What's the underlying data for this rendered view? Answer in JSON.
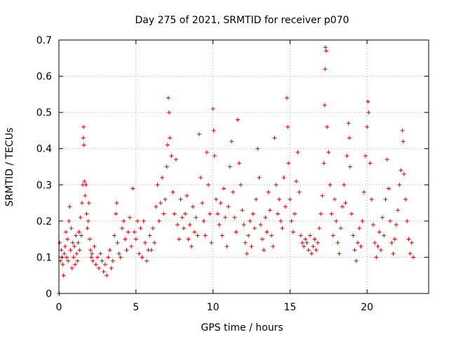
{
  "chart_data": {
    "type": "scatter",
    "title": "Day 275 of 2021, SRMTID for receiver p070",
    "xlabel": "GPS time / hours",
    "ylabel": "SRMTID / TECUs",
    "xlim": [
      0,
      24
    ],
    "ylim": [
      0,
      0.7
    ],
    "xticks": [
      0,
      5,
      10,
      15,
      20
    ],
    "yticks": [
      0,
      0.1,
      0.2,
      0.3,
      0.4,
      0.5,
      0.6,
      0.7
    ],
    "grid": true,
    "marker": "+",
    "color": "#e00000",
    "series": [
      {
        "name": "SRMTID",
        "points": [
          [
            0.0,
            0.0
          ],
          [
            0.02,
            0.0
          ],
          [
            0.05,
            0.14
          ],
          [
            0.1,
            0.09
          ],
          [
            0.15,
            0.12
          ],
          [
            0.2,
            0.1
          ],
          [
            0.25,
            0.08
          ],
          [
            0.3,
            0.05
          ],
          [
            0.35,
            0.11
          ],
          [
            0.4,
            0.13
          ],
          [
            0.45,
            0.17
          ],
          [
            0.5,
            0.1
          ],
          [
            0.55,
            0.15
          ],
          [
            0.6,
            0.09
          ],
          [
            0.65,
            0.2
          ],
          [
            0.7,
            0.24
          ],
          [
            0.75,
            0.12
          ],
          [
            0.8,
            0.18
          ],
          [
            0.85,
            0.07
          ],
          [
            0.9,
            0.14
          ],
          [
            0.95,
            0.1
          ],
          [
            1.0,
            0.13
          ],
          [
            1.05,
            0.08
          ],
          [
            1.1,
            0.16
          ],
          [
            1.15,
            0.11
          ],
          [
            1.2,
            0.09
          ],
          [
            1.25,
            0.14
          ],
          [
            1.3,
            0.17
          ],
          [
            1.35,
            0.12
          ],
          [
            1.4,
            0.21
          ],
          [
            1.45,
            0.16
          ],
          [
            1.5,
            0.25
          ],
          [
            1.55,
            0.3
          ],
          [
            1.58,
            0.43
          ],
          [
            1.6,
            0.46
          ],
          [
            1.62,
            0.41
          ],
          [
            1.65,
            0.31
          ],
          [
            1.7,
            0.27
          ],
          [
            1.75,
            0.3
          ],
          [
            1.8,
            0.22
          ],
          [
            1.85,
            0.18
          ],
          [
            1.9,
            0.2
          ],
          [
            1.95,
            0.25
          ],
          [
            2.0,
            0.15
          ],
          [
            2.05,
            0.12
          ],
          [
            2.1,
            0.1
          ],
          [
            2.15,
            0.11
          ],
          [
            2.2,
            0.09
          ],
          [
            2.3,
            0.13
          ],
          [
            2.4,
            0.08
          ],
          [
            2.5,
            0.1
          ],
          [
            2.6,
            0.07
          ],
          [
            2.7,
            0.11
          ],
          [
            2.8,
            0.09
          ],
          [
            2.9,
            0.06
          ],
          [
            3.0,
            0.08
          ],
          [
            3.1,
            0.05
          ],
          [
            3.2,
            0.1
          ],
          [
            3.3,
            0.12
          ],
          [
            3.4,
            0.07
          ],
          [
            3.5,
            0.09
          ],
          [
            3.6,
            0.16
          ],
          [
            3.7,
            0.22
          ],
          [
            3.75,
            0.25
          ],
          [
            3.8,
            0.14
          ],
          [
            3.9,
            0.11
          ],
          [
            4.0,
            0.1
          ],
          [
            4.1,
            0.18
          ],
          [
            4.2,
            0.2
          ],
          [
            4.3,
            0.15
          ],
          [
            4.4,
            0.12
          ],
          [
            4.5,
            0.17
          ],
          [
            4.6,
            0.21
          ],
          [
            4.7,
            0.13
          ],
          [
            4.8,
            0.29
          ],
          [
            4.9,
            0.17
          ],
          [
            5.0,
            0.15
          ],
          [
            5.1,
            0.2
          ],
          [
            5.2,
            0.11
          ],
          [
            5.3,
            0.18
          ],
          [
            5.4,
            0.1
          ],
          [
            5.5,
            0.2
          ],
          [
            5.6,
            0.14
          ],
          [
            5.7,
            0.09
          ],
          [
            5.8,
            0.12
          ],
          [
            5.9,
            0.16
          ],
          [
            6.0,
            0.12
          ],
          [
            6.1,
            0.18
          ],
          [
            6.2,
            0.14
          ],
          [
            6.3,
            0.24
          ],
          [
            6.4,
            0.3
          ],
          [
            6.5,
            0.2
          ],
          [
            6.6,
            0.25
          ],
          [
            6.7,
            0.32
          ],
          [
            6.8,
            0.22
          ],
          [
            6.9,
            0.26
          ],
          [
            7.0,
            0.35
          ],
          [
            7.05,
            0.41
          ],
          [
            7.1,
            0.54
          ],
          [
            7.15,
            0.5
          ],
          [
            7.2,
            0.43
          ],
          [
            7.3,
            0.38
          ],
          [
            7.4,
            0.28
          ],
          [
            7.5,
            0.22
          ],
          [
            7.6,
            0.37
          ],
          [
            7.7,
            0.19
          ],
          [
            7.8,
            0.15
          ],
          [
            7.9,
            0.26
          ],
          [
            8.0,
            0.21
          ],
          [
            8.1,
            0.18
          ],
          [
            8.2,
            0.22
          ],
          [
            8.3,
            0.27
          ],
          [
            8.4,
            0.15
          ],
          [
            8.5,
            0.19
          ],
          [
            8.6,
            0.13
          ],
          [
            8.7,
            0.24
          ],
          [
            8.8,
            0.17
          ],
          [
            8.9,
            0.21
          ],
          [
            9.0,
            0.16
          ],
          [
            9.1,
            0.44
          ],
          [
            9.2,
            0.32
          ],
          [
            9.3,
            0.25
          ],
          [
            9.4,
            0.2
          ],
          [
            9.5,
            0.16
          ],
          [
            9.6,
            0.39
          ],
          [
            9.7,
            0.3
          ],
          [
            9.8,
            0.22
          ],
          [
            9.9,
            0.14
          ],
          [
            10.0,
            0.51
          ],
          [
            10.05,
            0.45
          ],
          [
            10.1,
            0.38
          ],
          [
            10.2,
            0.26
          ],
          [
            10.3,
            0.22
          ],
          [
            10.4,
            0.19
          ],
          [
            10.5,
            0.25
          ],
          [
            10.6,
            0.16
          ],
          [
            10.7,
            0.29
          ],
          [
            10.8,
            0.21
          ],
          [
            10.9,
            0.13
          ],
          [
            11.0,
            0.24
          ],
          [
            11.1,
            0.35
          ],
          [
            11.2,
            0.42
          ],
          [
            11.3,
            0.28
          ],
          [
            11.4,
            0.21
          ],
          [
            11.5,
            0.17
          ],
          [
            11.6,
            0.48
          ],
          [
            11.7,
            0.36
          ],
          [
            11.8,
            0.3
          ],
          [
            11.9,
            0.23
          ],
          [
            12.0,
            0.19
          ],
          [
            12.1,
            0.14
          ],
          [
            12.2,
            0.11
          ],
          [
            12.3,
            0.16
          ],
          [
            12.4,
            0.2
          ],
          [
            12.5,
            0.13
          ],
          [
            12.6,
            0.22
          ],
          [
            12.7,
            0.18
          ],
          [
            12.8,
            0.26
          ],
          [
            12.9,
            0.4
          ],
          [
            13.0,
            0.32
          ],
          [
            13.1,
            0.19
          ],
          [
            13.2,
            0.15
          ],
          [
            13.3,
            0.12
          ],
          [
            13.4,
            0.21
          ],
          [
            13.5,
            0.17
          ],
          [
            13.6,
            0.28
          ],
          [
            13.7,
            0.23
          ],
          [
            13.8,
            0.16
          ],
          [
            13.9,
            0.13
          ],
          [
            14.0,
            0.43
          ],
          [
            14.1,
            0.3
          ],
          [
            14.2,
            0.22
          ],
          [
            14.3,
            0.26
          ],
          [
            14.4,
            0.2
          ],
          [
            14.5,
            0.18
          ],
          [
            14.6,
            0.32
          ],
          [
            14.7,
            0.24
          ],
          [
            14.8,
            0.54
          ],
          [
            14.85,
            0.46
          ],
          [
            14.9,
            0.36
          ],
          [
            15.0,
            0.26
          ],
          [
            15.1,
            0.2
          ],
          [
            15.2,
            0.17
          ],
          [
            15.3,
            0.22
          ],
          [
            15.4,
            0.31
          ],
          [
            15.5,
            0.39
          ],
          [
            15.6,
            0.28
          ],
          [
            15.7,
            0.16
          ],
          [
            15.8,
            0.14
          ],
          [
            15.9,
            0.13
          ],
          [
            16.0,
            0.15
          ],
          [
            16.1,
            0.14
          ],
          [
            16.2,
            0.12
          ],
          [
            16.3,
            0.16
          ],
          [
            16.4,
            0.11
          ],
          [
            16.5,
            0.13
          ],
          [
            16.6,
            0.15
          ],
          [
            16.7,
            0.12
          ],
          [
            16.8,
            0.14
          ],
          [
            16.9,
            0.18
          ],
          [
            17.0,
            0.22
          ],
          [
            17.1,
            0.27
          ],
          [
            17.2,
            0.36
          ],
          [
            17.25,
            0.52
          ],
          [
            17.28,
            0.62
          ],
          [
            17.3,
            0.68
          ],
          [
            17.35,
            0.67
          ],
          [
            17.4,
            0.46
          ],
          [
            17.5,
            0.39
          ],
          [
            17.6,
            0.3
          ],
          [
            17.7,
            0.22
          ],
          [
            17.8,
            0.16
          ],
          [
            17.9,
            0.26
          ],
          [
            18.0,
            0.2
          ],
          [
            18.1,
            0.14
          ],
          [
            18.2,
            0.11
          ],
          [
            18.3,
            0.18
          ],
          [
            18.4,
            0.24
          ],
          [
            18.5,
            0.3
          ],
          [
            18.6,
            0.25
          ],
          [
            18.7,
            0.38
          ],
          [
            18.8,
            0.47
          ],
          [
            18.85,
            0.43
          ],
          [
            18.9,
            0.35
          ],
          [
            19.0,
            0.22
          ],
          [
            19.1,
            0.16
          ],
          [
            19.2,
            0.12
          ],
          [
            19.3,
            0.09
          ],
          [
            19.4,
            0.14
          ],
          [
            19.5,
            0.18
          ],
          [
            19.6,
            0.13
          ],
          [
            19.7,
            0.2
          ],
          [
            19.8,
            0.28
          ],
          [
            19.9,
            0.38
          ],
          [
            20.0,
            0.46
          ],
          [
            20.05,
            0.53
          ],
          [
            20.1,
            0.5
          ],
          [
            20.2,
            0.36
          ],
          [
            20.3,
            0.26
          ],
          [
            20.4,
            0.19
          ],
          [
            20.5,
            0.14
          ],
          [
            20.6,
            0.1
          ],
          [
            20.7,
            0.13
          ],
          [
            20.8,
            0.17
          ],
          [
            20.9,
            0.12
          ],
          [
            21.0,
            0.21
          ],
          [
            21.1,
            0.16
          ],
          [
            21.2,
            0.26
          ],
          [
            21.3,
            0.37
          ],
          [
            21.4,
            0.29
          ],
          [
            21.5,
            0.2
          ],
          [
            21.6,
            0.14
          ],
          [
            21.7,
            0.11
          ],
          [
            21.8,
            0.15
          ],
          [
            21.9,
            0.19
          ],
          [
            22.0,
            0.23
          ],
          [
            22.1,
            0.3
          ],
          [
            22.2,
            0.34
          ],
          [
            22.3,
            0.45
          ],
          [
            22.35,
            0.42
          ],
          [
            22.4,
            0.33
          ],
          [
            22.5,
            0.26
          ],
          [
            22.6,
            0.2
          ],
          [
            22.7,
            0.15
          ],
          [
            22.8,
            0.11
          ],
          [
            22.9,
            0.14
          ],
          [
            23.0,
            0.1
          ]
        ]
      }
    ]
  }
}
